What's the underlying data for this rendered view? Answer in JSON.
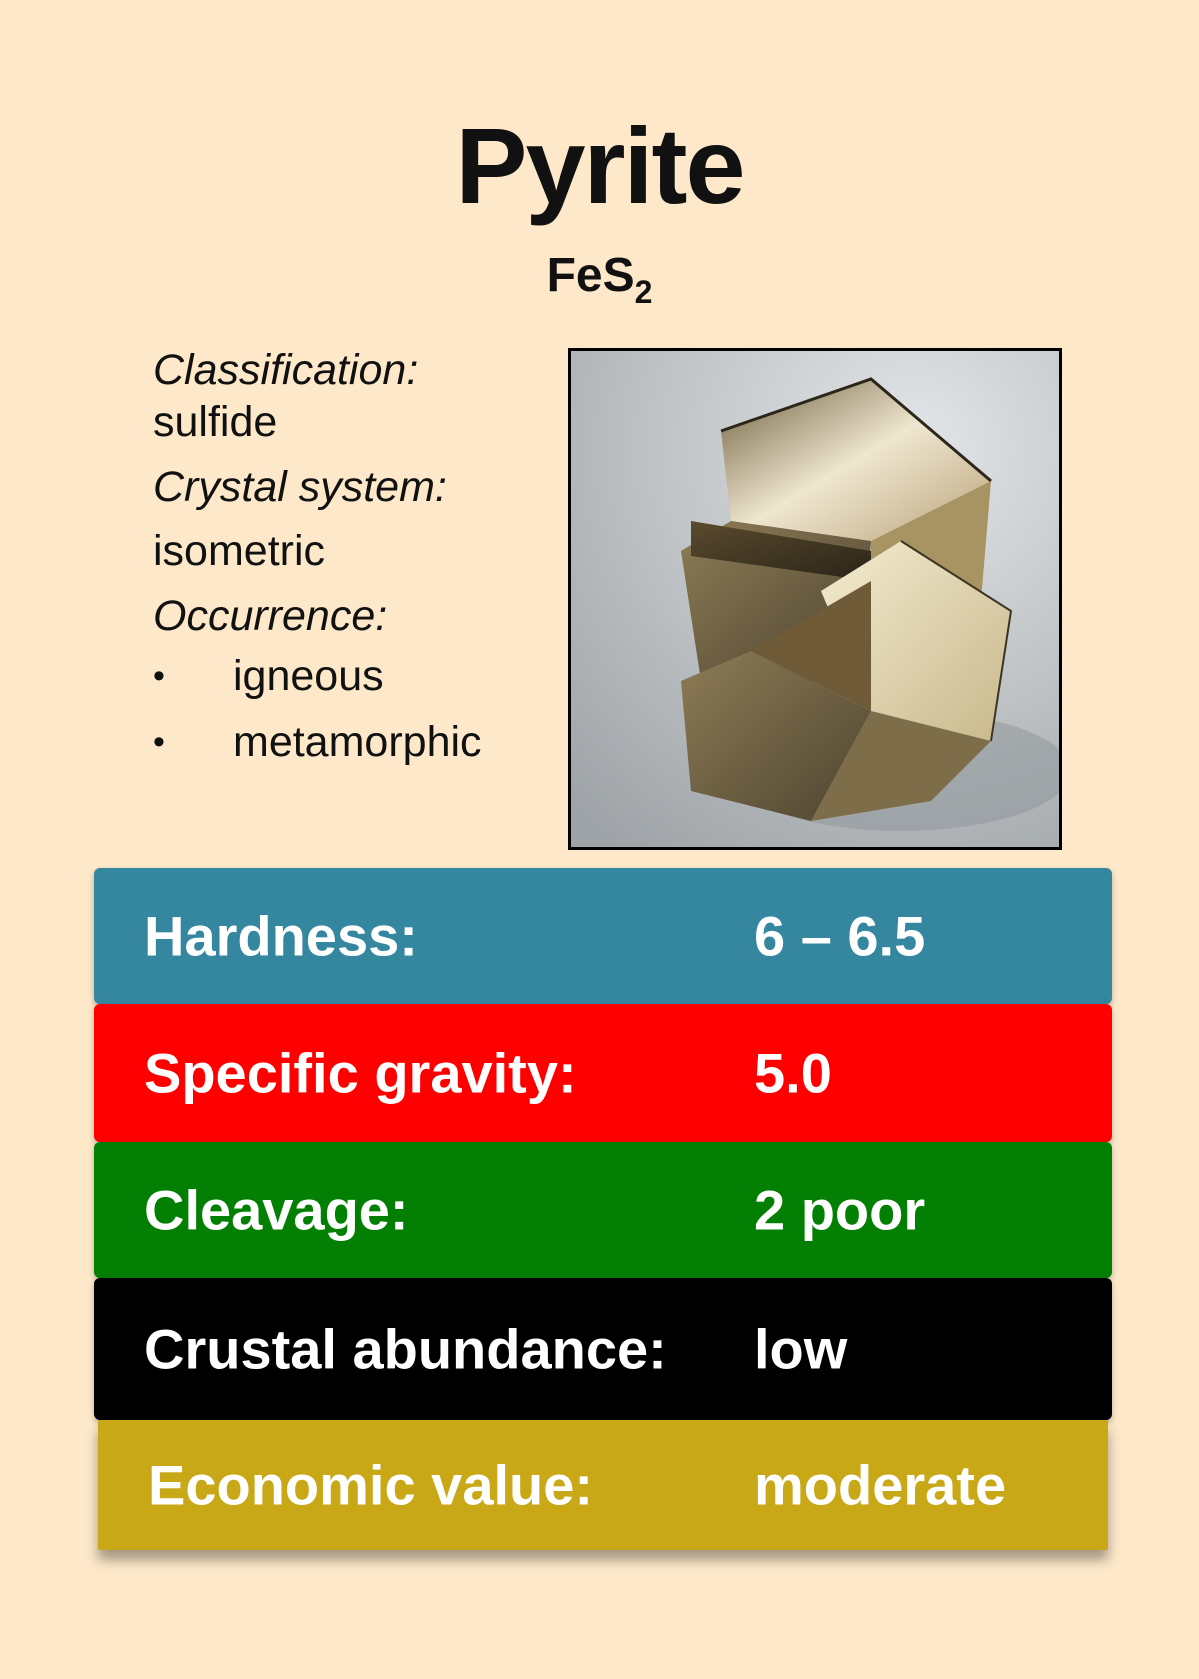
{
  "mineral": {
    "name": "Pyrite",
    "formula_base": "FeS",
    "formula_sub": "2"
  },
  "info": {
    "classification_label": "Classification:",
    "classification_value": "sulfide",
    "crystal_label": "Crystal system:",
    "crystal_value": "isometric",
    "occurrence_label": "Occurrence:",
    "occurrence_items": [
      "igneous",
      "metamorphic"
    ],
    "bullet": "•"
  },
  "photo": {
    "icon": "pyrite-crystal-photo"
  },
  "properties": [
    {
      "label": "Hardness:",
      "value": "6 – 6.5",
      "color": "#3587a0"
    },
    {
      "label": "Specific gravity:",
      "value": "5.0",
      "color": "#fe0000"
    },
    {
      "label": "Cleavage:",
      "value": "2 poor",
      "color": "#038003"
    },
    {
      "label": "Crustal abundance:",
      "value": "low",
      "color": "#000000"
    },
    {
      "label": "Economic value:",
      "value": "moderate",
      "color": "#c8a816"
    }
  ]
}
